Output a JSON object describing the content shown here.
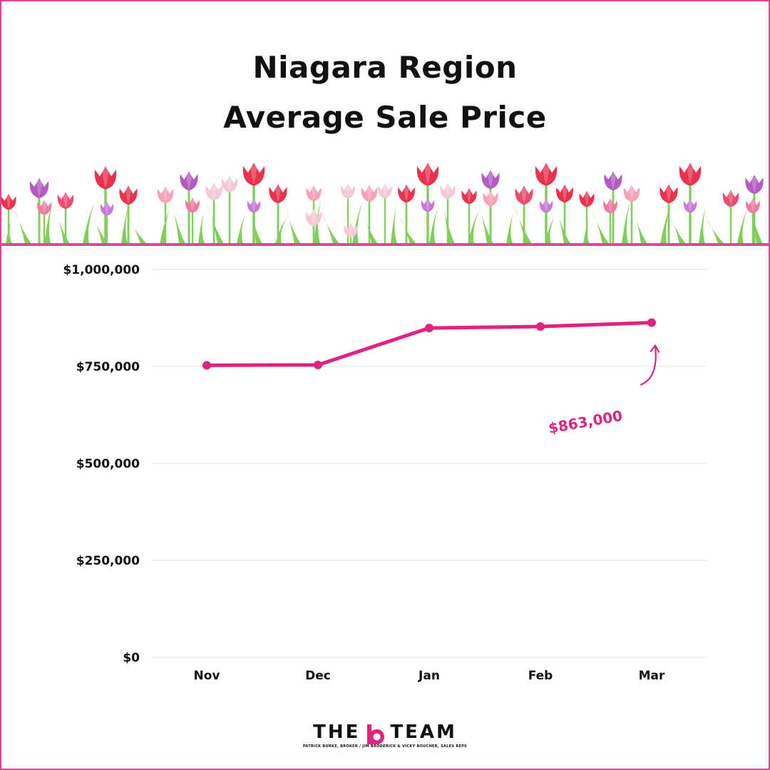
{
  "title": {
    "line1": "Niagara Region",
    "line2": "Average Sale Price"
  },
  "colors": {
    "accent": "#e0237f",
    "frame": "#e0478f"
  },
  "chart_data": {
    "type": "line",
    "categories": [
      "Nov",
      "Dec",
      "Jan",
      "Feb",
      "Mar"
    ],
    "series": [
      {
        "values": [
          753000,
          754000,
          849000,
          853000,
          863000
        ]
      }
    ],
    "y_ticks": [
      "$0",
      "$250,000",
      "$500,000",
      "$750,000",
      "$1,000,000"
    ],
    "ylim": [
      0,
      1000000
    ],
    "grid": true,
    "annotation": {
      "text": "$863,000",
      "category": "Mar",
      "value": 863000
    }
  },
  "logo": {
    "left": "THE",
    "right": "TEAM",
    "tagline": "PATRICK BURKE, BROKER / JIM BRODERICK & VICKY BOUCHER, SALES REPS"
  }
}
